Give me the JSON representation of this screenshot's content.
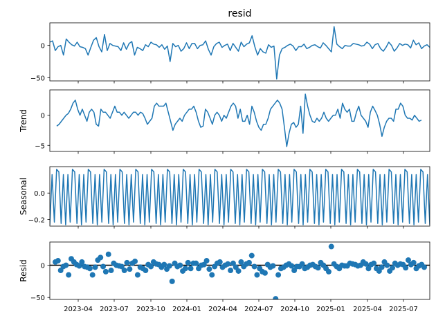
{
  "chart_data": [
    {
      "type": "line",
      "title": "resid",
      "xlabel": "",
      "ylabel": "",
      "x_tick_labels": [
        "2023-04",
        "2023-07",
        "2023-10",
        "2024-01",
        "2024-04",
        "2024-07",
        "2024-10",
        "2025-01",
        "2025-04",
        "2025-07"
      ],
      "ylim": [
        -55,
        35
      ],
      "y_ticks": [
        -50,
        0
      ],
      "color": "#1f77b4",
      "series": [
        {
          "values": [
            5,
            7,
            -8,
            -2,
            0,
            -15,
            10,
            5,
            1,
            -1,
            5,
            -2,
            -3,
            -5,
            -15,
            -3,
            8,
            12,
            -2,
            -10,
            17,
            -8,
            3,
            0,
            -1,
            -2,
            -8,
            4,
            -6,
            3,
            6,
            -15,
            -3,
            -5,
            -8,
            1,
            -2,
            5,
            2,
            1,
            -3,
            1,
            -6,
            -1,
            -25,
            3,
            -2,
            0,
            -9,
            -5,
            4,
            -5,
            3,
            3,
            -5,
            0,
            1,
            7,
            -6,
            -15,
            -2,
            3,
            5,
            -3,
            0,
            2,
            -8,
            3,
            -3,
            -9,
            5,
            -2,
            2,
            4,
            15,
            -2,
            -15,
            -5,
            -10,
            -12,
            1,
            -3,
            -1,
            -52,
            -15,
            -5,
            -3,
            0,
            2,
            -1,
            -8,
            -2,
            -2,
            2,
            -5,
            -3,
            0,
            1,
            -2,
            -4,
            4,
            0,
            -5,
            -10,
            29,
            2,
            -2,
            -5,
            0,
            -1,
            -1,
            3,
            2,
            1,
            -1,
            0,
            5,
            2,
            -5,
            1,
            3,
            -5,
            -9,
            -3,
            5,
            0,
            -9,
            -4,
            3,
            0,
            2,
            1,
            -4,
            8,
            1,
            4,
            -5,
            -1,
            1,
            -3
          ]
        }
      ]
    },
    {
      "type": "line",
      "title": "",
      "xlabel": "",
      "ylabel": "Trend",
      "x_tick_labels": [
        "2023-04",
        "2023-07",
        "2023-10",
        "2024-01",
        "2024-04",
        "2024-07",
        "2024-10",
        "2025-01",
        "2025-04",
        "2025-07"
      ],
      "ylim": [
        -6.0,
        4.2
      ],
      "y_ticks": [
        -5,
        0
      ],
      "color": "#1f77b4",
      "series": [
        {
          "values": [
            -1.8,
            -1.5,
            -1.0,
            -0.5,
            0.0,
            0.3,
            1.0,
            2.0,
            2.5,
            1.0,
            0.0,
            1.0,
            0.0,
            -1.0,
            0.5,
            1.0,
            0.5,
            -1.5,
            -1.8,
            1.0,
            0.5,
            0.5,
            0.0,
            -0.5,
            0.5,
            1.5,
            0.5,
            0.5,
            0.0,
            0.5,
            0.0,
            -0.5,
            0.0,
            0.5,
            0.5,
            0.0,
            0.5,
            0.3,
            -0.5,
            -1.5,
            -1.0,
            -0.5,
            1.5,
            2.0,
            1.5,
            1.5,
            1.5,
            2.0,
            0.5,
            -1.0,
            -2.5,
            -1.5,
            -1.0,
            -0.5,
            -1.0,
            0.0,
            0.5,
            1.0,
            1.0,
            1.5,
            0.5,
            -1.0,
            -2.0,
            -1.8,
            1.0,
            0.5,
            -0.5,
            -1.5,
            0.0,
            0.5,
            0.0,
            -1.0,
            0.0,
            -0.5,
            0.5,
            1.5,
            2.0,
            1.5,
            -0.5,
            1.0,
            -1.0,
            -1.0,
            0.0,
            -1.5,
            1.5,
            0.5,
            -1.0,
            -2.0,
            -2.5,
            -1.5,
            -1.5,
            -0.5,
            1.0,
            1.5,
            2.0,
            2.5,
            2.0,
            1.0,
            -2.0,
            -5.2,
            -3.0,
            -1.5,
            -1.2,
            -2.0,
            -1.5,
            1.5,
            -3.0,
            3.5,
            1.5,
            0.0,
            -1.0,
            -1.2,
            -0.5,
            -1.0,
            -0.5,
            0.5,
            -0.5,
            -1.0,
            -0.5,
            0.0,
            0.0,
            1.0,
            -0.5,
            2.0,
            1.0,
            0.5,
            1.0,
            -1.0,
            -1.0,
            0.5,
            1.5,
            0.0,
            -0.5,
            -1.0,
            -2.0,
            0.5,
            1.5,
            0.8,
            0.0,
            -1.5,
            -3.5,
            -2.0,
            -1.0,
            -0.5,
            -0.5,
            -1.0,
            1.0,
            1.0,
            2.0,
            1.5,
            0.0,
            -0.5,
            -0.5,
            -0.8,
            0.0,
            -0.5,
            -1.0,
            -0.8
          ]
        }
      ]
    },
    {
      "type": "line",
      "title": "",
      "xlabel": "",
      "ylabel": "Seasonal",
      "x_tick_labels": [
        "2023-04",
        "2023-07",
        "2023-10",
        "2024-01",
        "2024-04",
        "2024-07",
        "2024-10",
        "2025-01",
        "2025-04",
        "2025-07"
      ],
      "ylim": [
        -0.25,
        0.2
      ],
      "y_ticks": [
        -0.2,
        0.0
      ],
      "y_tick_labels": [
        "−0.2",
        "0.0"
      ],
      "color": "#1f77b4",
      "pattern": [
        -0.24,
        0.14,
        -0.22,
        0.18,
        0.16,
        -0.23,
        0.14
      ],
      "periods": 24
    },
    {
      "type": "scatter",
      "title": "",
      "xlabel": "",
      "ylabel": "Resid",
      "x_tick_labels": [
        "2023-04",
        "2023-07",
        "2023-10",
        "2024-01",
        "2024-04",
        "2024-07",
        "2024-10",
        "2025-01",
        "2025-04",
        "2025-07"
      ],
      "ylim": [
        -53,
        36
      ],
      "y_ticks": [
        -50,
        0
      ],
      "color": "#1f77b4",
      "baseline": 0,
      "series": [
        {
          "values": [
            5,
            7,
            -8,
            -2,
            0,
            -15,
            10,
            5,
            1,
            -1,
            5,
            -2,
            -3,
            -5,
            -15,
            -3,
            8,
            12,
            -2,
            -10,
            17,
            -8,
            3,
            0,
            -1,
            -2,
            -8,
            4,
            -6,
            3,
            6,
            -15,
            -3,
            -5,
            -8,
            1,
            -2,
            5,
            2,
            1,
            -3,
            1,
            -6,
            -1,
            -25,
            3,
            -2,
            0,
            -9,
            -5,
            4,
            -5,
            3,
            3,
            -5,
            0,
            1,
            7,
            -6,
            -15,
            -2,
            3,
            5,
            -3,
            0,
            2,
            -8,
            3,
            -3,
            -9,
            5,
            -2,
            2,
            4,
            15,
            -2,
            -15,
            -5,
            -10,
            -12,
            1,
            -3,
            -1,
            -52,
            -15,
            -5,
            -3,
            0,
            2,
            -1,
            -8,
            -2,
            -2,
            2,
            -5,
            -3,
            0,
            1,
            -2,
            -4,
            4,
            0,
            -5,
            -10,
            29,
            2,
            -2,
            -5,
            0,
            -1,
            -1,
            3,
            2,
            1,
            -1,
            0,
            5,
            2,
            -5,
            1,
            3,
            -5,
            -9,
            -3,
            5,
            0,
            -9,
            -4,
            3,
            0,
            2,
            1,
            -4,
            8,
            1,
            4,
            -5,
            -1,
            1,
            -3
          ]
        }
      ]
    }
  ]
}
